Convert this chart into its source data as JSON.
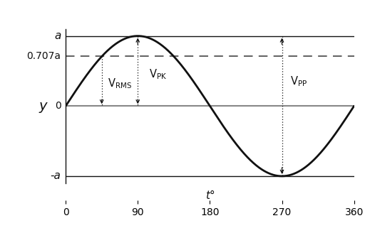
{
  "xlabel": "t°",
  "ylabel": "y",
  "xlim": [
    0,
    360
  ],
  "ylim": [
    -1.35,
    1.35
  ],
  "xticks": [
    0,
    90,
    180,
    270,
    360
  ],
  "amplitude": 1.0,
  "rms_value": 0.707,
  "x_rms1": 45.0,
  "x_rms2": 90.0,
  "x_pk": 90.0,
  "x_pp": 270.0,
  "sine_color": "#111111",
  "line_color": "#111111",
  "dashed_color": "#666666",
  "zero_line_color": "#888888",
  "background_color": "#ffffff",
  "label_a_top": "a",
  "label_a_bot": "-a",
  "label_0707": "0.707a",
  "label_0": "0",
  "figsize": [
    5.12,
    3.21
  ],
  "dpi": 100
}
